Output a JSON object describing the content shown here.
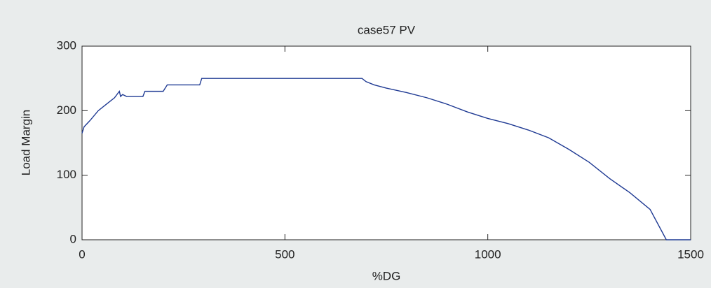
{
  "chart_data": {
    "type": "line",
    "title": "case57 PV",
    "xlabel": "%DG",
    "ylabel": "Load Margin",
    "x": [
      0,
      5,
      20,
      40,
      60,
      80,
      92,
      95,
      100,
      110,
      150,
      155,
      200,
      210,
      290,
      295,
      500,
      690,
      700,
      720,
      750,
      800,
      850,
      900,
      950,
      1000,
      1050,
      1100,
      1150,
      1200,
      1250,
      1300,
      1350,
      1400,
      1440,
      1500
    ],
    "series": [
      {
        "color": "#1f3a93",
        "values": [
          165,
          175,
          185,
          200,
          210,
          220,
          230,
          222,
          225,
          222,
          222,
          230,
          230,
          240,
          240,
          250,
          250,
          250,
          245,
          240,
          235,
          228,
          220,
          210,
          198,
          188,
          180,
          170,
          158,
          140,
          120,
          95,
          73,
          47,
          0,
          0
        ]
      }
    ],
    "xlim": [
      0,
      1500
    ],
    "ylim": [
      0,
      300
    ],
    "xticks": [
      0,
      500,
      1000,
      1500
    ],
    "yticks": [
      0,
      100,
      200,
      300
    ],
    "grid": false
  }
}
